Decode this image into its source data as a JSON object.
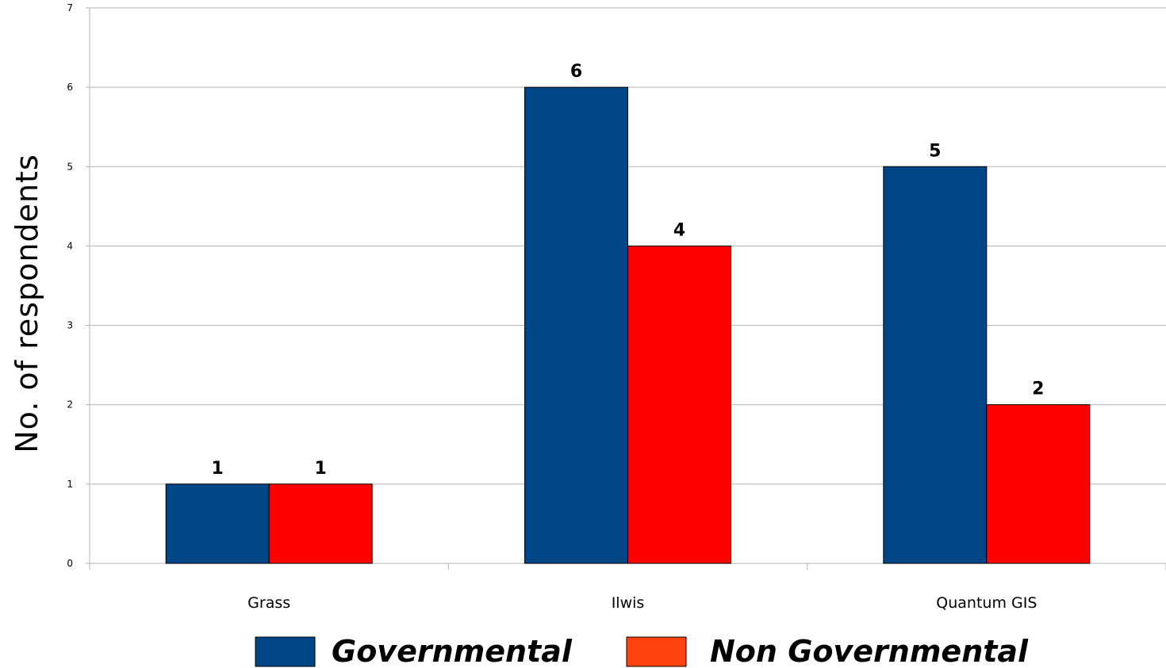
{
  "chart_data": {
    "type": "bar",
    "categories": [
      "Grass",
      "Ilwis",
      "Quantum GIS"
    ],
    "series": [
      {
        "name": "Governmental",
        "values": [
          1,
          6,
          5
        ],
        "color": "#004586"
      },
      {
        "name": "Non Governmental",
        "values": [
          1,
          4,
          2
        ],
        "color": "#ff0000"
      }
    ],
    "legend_colors": [
      "#004586",
      "#ff420e"
    ],
    "ylabel": "No. of respondents",
    "xlabel": "",
    "ylim": [
      0,
      7
    ],
    "yticks": [
      "0",
      "1",
      "2",
      "3",
      "4",
      "5",
      "6",
      "7"
    ],
    "grid": true,
    "legend_position": "bottom",
    "data_labels": true
  }
}
